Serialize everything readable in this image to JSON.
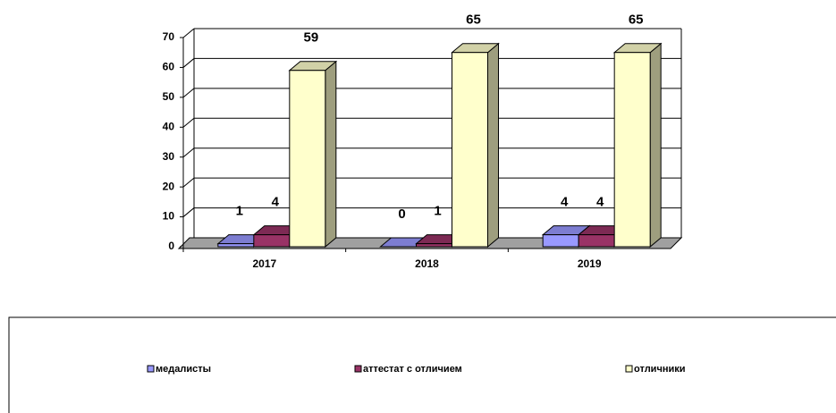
{
  "chart_data": {
    "type": "bar3d",
    "categories": [
      "2017",
      "2018",
      "2019"
    ],
    "series": [
      {
        "name": "медалисты",
        "color": "#9999ff",
        "values": [
          1,
          0,
          4
        ]
      },
      {
        "name": "аттестат с отличием",
        "color": "#993366",
        "values": [
          4,
          1,
          4
        ]
      },
      {
        "name": "отличники",
        "color": "#ffffcc",
        "values": [
          59,
          65,
          65
        ]
      }
    ],
    "ylim": [
      0,
      70
    ],
    "yticks": [
      0,
      10,
      20,
      30,
      40,
      50,
      60,
      70
    ],
    "grid": true,
    "legend": "bottom"
  }
}
